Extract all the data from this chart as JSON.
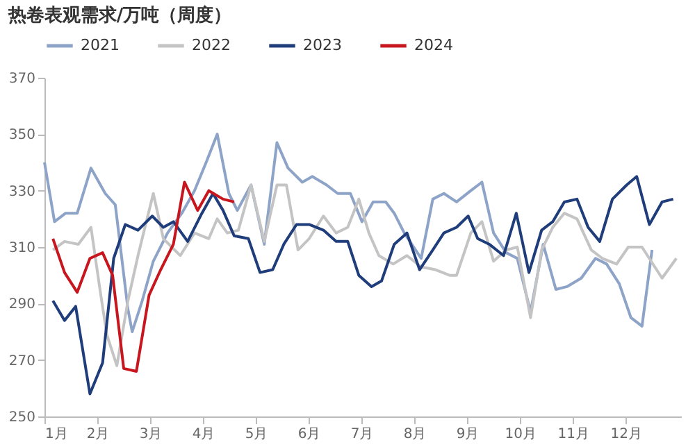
{
  "chart_data": {
    "type": "line",
    "title": "热卷表观需求/万吨（周度）",
    "legend": "top",
    "grid": false,
    "marker": "none",
    "line_style": "solid",
    "xlim": [
      1,
      13.05
    ],
    "xticks": [
      {
        "value": 1,
        "label": "1月"
      },
      {
        "value": 2,
        "label": "2月"
      },
      {
        "value": 3,
        "label": "3月"
      },
      {
        "value": 4,
        "label": "4月"
      },
      {
        "value": 5,
        "label": "5月"
      },
      {
        "value": 6,
        "label": "6月"
      },
      {
        "value": 7,
        "label": "7月"
      },
      {
        "value": 8,
        "label": "8月"
      },
      {
        "value": 9,
        "label": "9月"
      },
      {
        "value": 10,
        "label": "10月"
      },
      {
        "value": 11,
        "label": "11月"
      },
      {
        "value": 12,
        "label": "12月"
      }
    ],
    "ylim": [
      250,
      370
    ],
    "yticks": [
      250,
      270,
      290,
      310,
      330,
      350,
      370
    ],
    "series": [
      {
        "name": "2021",
        "color": "#8ea3c8",
        "x": [
          1.0,
          1.19,
          1.4,
          1.62,
          1.88,
          2.15,
          2.34,
          2.58,
          2.66,
          2.85,
          3.06,
          3.33,
          3.6,
          3.84,
          4.06,
          4.27,
          4.49,
          4.65,
          4.91,
          5.16,
          5.4,
          5.61,
          5.88,
          6.07,
          6.34,
          6.55,
          6.79,
          7.01,
          7.22,
          7.46,
          7.62,
          7.81,
          8.13,
          8.35,
          8.56,
          8.8,
          9.07,
          9.28,
          9.5,
          9.74,
          9.95,
          10.2,
          10.44,
          10.68,
          10.89,
          11.16,
          11.43,
          11.64,
          11.88,
          12.1,
          12.31,
          12.5
        ],
        "values": [
          340,
          319,
          322,
          322,
          338,
          329,
          325,
          288,
          280,
          291,
          305,
          315,
          322,
          330,
          340,
          350,
          329,
          323,
          332,
          311,
          347,
          338,
          333,
          335,
          332,
          329,
          329,
          319,
          326,
          326,
          322,
          315,
          306,
          327,
          329,
          326,
          330,
          333,
          315,
          308,
          306,
          287,
          311,
          295,
          296,
          299,
          306,
          304,
          297,
          285,
          282,
          309
        ]
      },
      {
        "name": "2022",
        "color": "#c4c4c4",
        "x": [
          1.16,
          1.38,
          1.64,
          1.88,
          2.05,
          2.18,
          2.37,
          2.58,
          2.77,
          3.06,
          3.25,
          3.57,
          3.84,
          4.11,
          4.27,
          4.46,
          4.67,
          4.91,
          5.16,
          5.4,
          5.58,
          5.8,
          6.01,
          6.28,
          6.52,
          6.74,
          6.95,
          7.14,
          7.33,
          7.6,
          7.86,
          8.13,
          8.4,
          8.67,
          8.8,
          9.07,
          9.28,
          9.5,
          9.74,
          9.95,
          10.2,
          10.41,
          10.62,
          10.84,
          11.08,
          11.35,
          11.56,
          11.83,
          12.05,
          12.31,
          12.69,
          12.96
        ],
        "values": [
          309,
          312,
          311,
          317,
          295,
          279,
          268,
          291,
          307,
          329,
          313,
          307,
          315,
          313,
          320,
          315,
          316,
          332,
          312,
          332,
          332,
          309,
          313,
          321,
          315,
          317,
          327,
          315,
          307,
          304,
          307,
          303,
          302,
          300,
          300,
          315,
          319,
          305,
          309,
          310,
          285,
          309,
          317,
          322,
          320,
          309,
          306,
          304,
          310,
          310,
          299,
          306
        ]
      },
      {
        "name": "2023",
        "color": "#1f3d7a",
        "x": [
          1.16,
          1.38,
          1.59,
          1.86,
          2.1,
          2.31,
          2.53,
          2.77,
          3.04,
          3.25,
          3.44,
          3.71,
          3.98,
          4.19,
          4.38,
          4.59,
          4.86,
          5.08,
          5.32,
          5.53,
          5.77,
          6.01,
          6.28,
          6.52,
          6.74,
          6.95,
          7.19,
          7.38,
          7.62,
          7.86,
          8.1,
          8.35,
          8.56,
          8.8,
          9.02,
          9.2,
          9.42,
          9.69,
          9.93,
          10.17,
          10.41,
          10.62,
          10.84,
          11.08,
          11.29,
          11.51,
          11.75,
          12.02,
          12.21,
          12.45,
          12.69,
          12.9
        ],
        "values": [
          291,
          284,
          289,
          258,
          269,
          306,
          318,
          316,
          321,
          317,
          319,
          312,
          322,
          329,
          323,
          314,
          313,
          301,
          302,
          311,
          318,
          318,
          316,
          312,
          312,
          300,
          296,
          298,
          311,
          315,
          302,
          309,
          315,
          317,
          321,
          313,
          311,
          307,
          322,
          301,
          316,
          319,
          326,
          327,
          317,
          312,
          327,
          332,
          335,
          318,
          326,
          327
        ]
      },
      {
        "name": "2024",
        "color": "#c8161e",
        "x": [
          1.16,
          1.38,
          1.62,
          1.86,
          2.1,
          2.29,
          2.5,
          2.74,
          2.98,
          3.2,
          3.44,
          3.65,
          3.9,
          4.11,
          4.38,
          4.59
        ],
        "values": [
          313,
          301,
          294,
          306,
          308,
          300,
          267,
          266,
          293,
          302,
          311,
          333,
          323,
          330,
          327,
          326
        ]
      }
    ]
  }
}
